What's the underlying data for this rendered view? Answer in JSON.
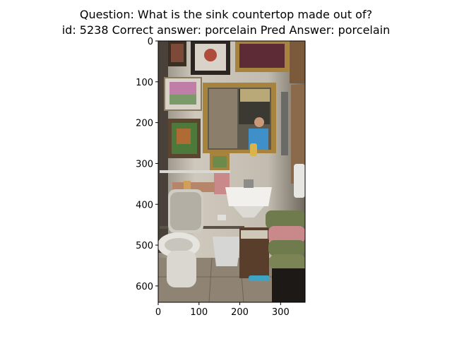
{
  "figure": {
    "title_line1": "Question: What is the sink countertop made out of?",
    "title_line2": "id: 5238 Correct answer: porcelain Pred Answer: porcelain"
  },
  "image_panel": {
    "description_icon": "photo-bathroom-icon",
    "colors": {
      "wall": "#c9c2b6",
      "floor": "#8f8473",
      "frame_gold": "#a8833e",
      "frame_dark": "#3b2e22",
      "toilet": "#e6e4de",
      "towel_green": "#6f7a4d",
      "towel_pink": "#c9898a",
      "shirt_blue": "#3f8fc9"
    }
  },
  "chart_data": {
    "type": "image",
    "title": "Question: What is the sink countertop made out of?\nid: 5238 Correct answer: porcelain Pred Answer: porcelain",
    "xlim": [
      0,
      360
    ],
    "ylim": [
      640,
      0
    ],
    "xticks": [
      0,
      100,
      200,
      300
    ],
    "yticks": [
      0,
      100,
      200,
      300,
      400,
      500,
      600
    ],
    "xlabel": "",
    "ylabel": "",
    "grid": false
  }
}
